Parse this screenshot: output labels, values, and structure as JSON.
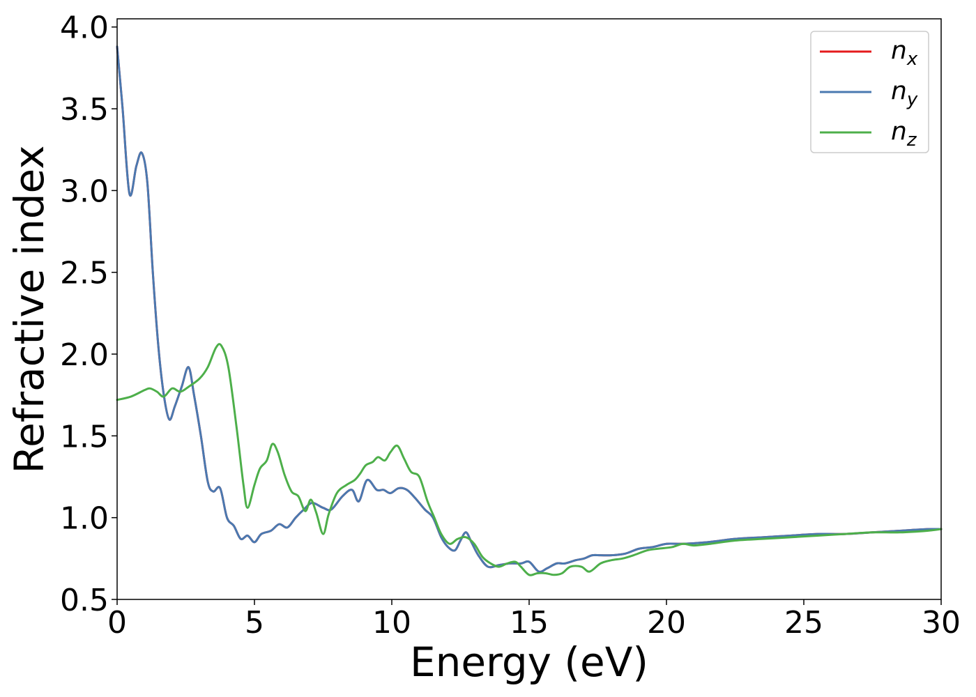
{
  "chart_data": {
    "type": "line",
    "title": "",
    "xlabel": "Energy (eV)",
    "ylabel": "Refractive index",
    "xlim": [
      0,
      30
    ],
    "ylim": [
      0.5,
      4.05
    ],
    "xticks": [
      0,
      5,
      10,
      15,
      20,
      25,
      30
    ],
    "xtick_labels": [
      "0",
      "5",
      "10",
      "15",
      "20",
      "25",
      "30"
    ],
    "yticks": [
      0.5,
      1.0,
      1.5,
      2.0,
      2.5,
      3.0,
      3.5,
      4.0
    ],
    "ytick_labels": [
      "0.5",
      "1.0",
      "1.5",
      "2.0",
      "2.5",
      "3.0",
      "3.5",
      "4.0"
    ],
    "grid": false,
    "legend_position": "top-right",
    "series": [
      {
        "name": "n_x",
        "legend_main": "n",
        "legend_sub": "x",
        "color": "#e41a1c",
        "x": [
          0,
          0.2,
          0.45,
          0.7,
          0.9,
          1.1,
          1.3,
          1.5,
          1.7,
          1.9,
          2.1,
          2.35,
          2.6,
          2.8,
          3.05,
          3.3,
          3.5,
          3.75,
          4.0,
          4.25,
          4.5,
          4.75,
          5.0,
          5.25,
          5.6,
          5.9,
          6.2,
          6.5,
          6.8,
          7.1,
          7.5,
          7.8,
          8.2,
          8.55,
          8.8,
          9.1,
          9.45,
          9.7,
          9.95,
          10.25,
          10.55,
          10.85,
          11.2,
          11.5,
          11.8,
          12.05,
          12.3,
          12.5,
          12.7,
          12.9,
          13.15,
          13.5,
          13.9,
          14.3,
          14.7,
          15.0,
          15.35,
          15.65,
          16.0,
          16.3,
          16.7,
          17.0,
          17.3,
          17.6,
          18.0,
          18.5,
          19.0,
          19.5,
          20.0,
          20.6,
          21.5,
          22.5,
          23.5,
          24.5,
          25.5,
          26.5,
          27.5,
          28.5,
          29.5,
          30.0
        ],
        "values": [
          3.88,
          3.5,
          2.98,
          3.15,
          3.23,
          3.05,
          2.5,
          2.05,
          1.75,
          1.6,
          1.68,
          1.8,
          1.92,
          1.75,
          1.5,
          1.22,
          1.16,
          1.18,
          1.0,
          0.95,
          0.87,
          0.89,
          0.85,
          0.9,
          0.92,
          0.96,
          0.94,
          1.0,
          1.05,
          1.09,
          1.06,
          1.05,
          1.13,
          1.17,
          1.1,
          1.23,
          1.17,
          1.17,
          1.15,
          1.18,
          1.17,
          1.12,
          1.05,
          1.0,
          0.88,
          0.82,
          0.8,
          0.86,
          0.91,
          0.85,
          0.77,
          0.7,
          0.71,
          0.72,
          0.72,
          0.73,
          0.67,
          0.69,
          0.72,
          0.72,
          0.74,
          0.75,
          0.77,
          0.77,
          0.77,
          0.78,
          0.81,
          0.82,
          0.84,
          0.84,
          0.85,
          0.87,
          0.88,
          0.89,
          0.9,
          0.9,
          0.91,
          0.92,
          0.93,
          0.93
        ]
      },
      {
        "name": "n_y",
        "legend_main": "n",
        "legend_sub": "y",
        "color": "#4a79b0",
        "x": [
          0,
          0.2,
          0.45,
          0.7,
          0.9,
          1.1,
          1.3,
          1.5,
          1.7,
          1.9,
          2.1,
          2.35,
          2.6,
          2.8,
          3.05,
          3.3,
          3.5,
          3.75,
          4.0,
          4.25,
          4.5,
          4.75,
          5.0,
          5.25,
          5.6,
          5.9,
          6.2,
          6.5,
          6.8,
          7.1,
          7.5,
          7.8,
          8.2,
          8.55,
          8.8,
          9.1,
          9.45,
          9.7,
          9.95,
          10.25,
          10.55,
          10.85,
          11.2,
          11.5,
          11.8,
          12.05,
          12.3,
          12.5,
          12.7,
          12.9,
          13.15,
          13.5,
          13.9,
          14.3,
          14.7,
          15.0,
          15.35,
          15.65,
          16.0,
          16.3,
          16.7,
          17.0,
          17.3,
          17.6,
          18.0,
          18.5,
          19.0,
          19.5,
          20.0,
          20.6,
          21.5,
          22.5,
          23.5,
          24.5,
          25.5,
          26.5,
          27.5,
          28.5,
          29.5,
          30.0
        ],
        "values": [
          3.88,
          3.5,
          2.98,
          3.15,
          3.23,
          3.05,
          2.5,
          2.05,
          1.75,
          1.6,
          1.68,
          1.8,
          1.92,
          1.75,
          1.5,
          1.22,
          1.16,
          1.18,
          1.0,
          0.95,
          0.87,
          0.89,
          0.85,
          0.9,
          0.92,
          0.96,
          0.94,
          1.0,
          1.05,
          1.09,
          1.06,
          1.05,
          1.13,
          1.17,
          1.1,
          1.23,
          1.17,
          1.17,
          1.15,
          1.18,
          1.17,
          1.12,
          1.05,
          1.0,
          0.88,
          0.82,
          0.8,
          0.86,
          0.91,
          0.85,
          0.77,
          0.7,
          0.71,
          0.72,
          0.72,
          0.73,
          0.67,
          0.69,
          0.72,
          0.72,
          0.74,
          0.75,
          0.77,
          0.77,
          0.77,
          0.78,
          0.81,
          0.82,
          0.84,
          0.84,
          0.85,
          0.87,
          0.88,
          0.89,
          0.9,
          0.9,
          0.91,
          0.92,
          0.93,
          0.93
        ]
      },
      {
        "name": "n_z",
        "legend_main": "n",
        "legend_sub": "z",
        "color": "#4daf4a",
        "x": [
          0,
          0.5,
          1.0,
          1.2,
          1.45,
          1.7,
          2.0,
          2.3,
          2.6,
          3.0,
          3.3,
          3.6,
          3.8,
          4.05,
          4.35,
          4.6,
          4.75,
          5.0,
          5.2,
          5.45,
          5.65,
          5.85,
          6.1,
          6.35,
          6.6,
          6.85,
          7.05,
          7.25,
          7.5,
          7.7,
          8.0,
          8.35,
          8.65,
          8.85,
          9.05,
          9.3,
          9.5,
          9.75,
          9.95,
          10.2,
          10.45,
          10.7,
          11.0,
          11.3,
          11.55,
          11.8,
          12.1,
          12.4,
          12.7,
          13.0,
          13.3,
          13.6,
          13.9,
          14.2,
          14.5,
          14.7,
          15.0,
          15.3,
          15.6,
          15.9,
          16.2,
          16.5,
          16.9,
          17.2,
          17.6,
          18.0,
          18.4,
          18.8,
          19.3,
          19.7,
          20.2,
          20.6,
          21.0,
          21.6,
          22.5,
          23.5,
          24.5,
          25.5,
          26.5,
          27.5,
          28.5,
          29.5,
          30.0
        ],
        "values": [
          1.72,
          1.74,
          1.78,
          1.79,
          1.77,
          1.74,
          1.79,
          1.77,
          1.8,
          1.85,
          1.92,
          2.04,
          2.05,
          1.92,
          1.55,
          1.2,
          1.06,
          1.2,
          1.3,
          1.35,
          1.45,
          1.4,
          1.26,
          1.16,
          1.13,
          1.04,
          1.11,
          1.03,
          0.9,
          1.02,
          1.15,
          1.2,
          1.23,
          1.27,
          1.32,
          1.34,
          1.37,
          1.35,
          1.4,
          1.44,
          1.36,
          1.28,
          1.25,
          1.1,
          1.0,
          0.9,
          0.84,
          0.87,
          0.88,
          0.84,
          0.76,
          0.72,
          0.7,
          0.72,
          0.73,
          0.7,
          0.65,
          0.66,
          0.66,
          0.65,
          0.66,
          0.7,
          0.7,
          0.67,
          0.72,
          0.74,
          0.75,
          0.77,
          0.8,
          0.81,
          0.82,
          0.84,
          0.83,
          0.84,
          0.86,
          0.87,
          0.88,
          0.89,
          0.9,
          0.91,
          0.91,
          0.92,
          0.93
        ]
      }
    ]
  }
}
